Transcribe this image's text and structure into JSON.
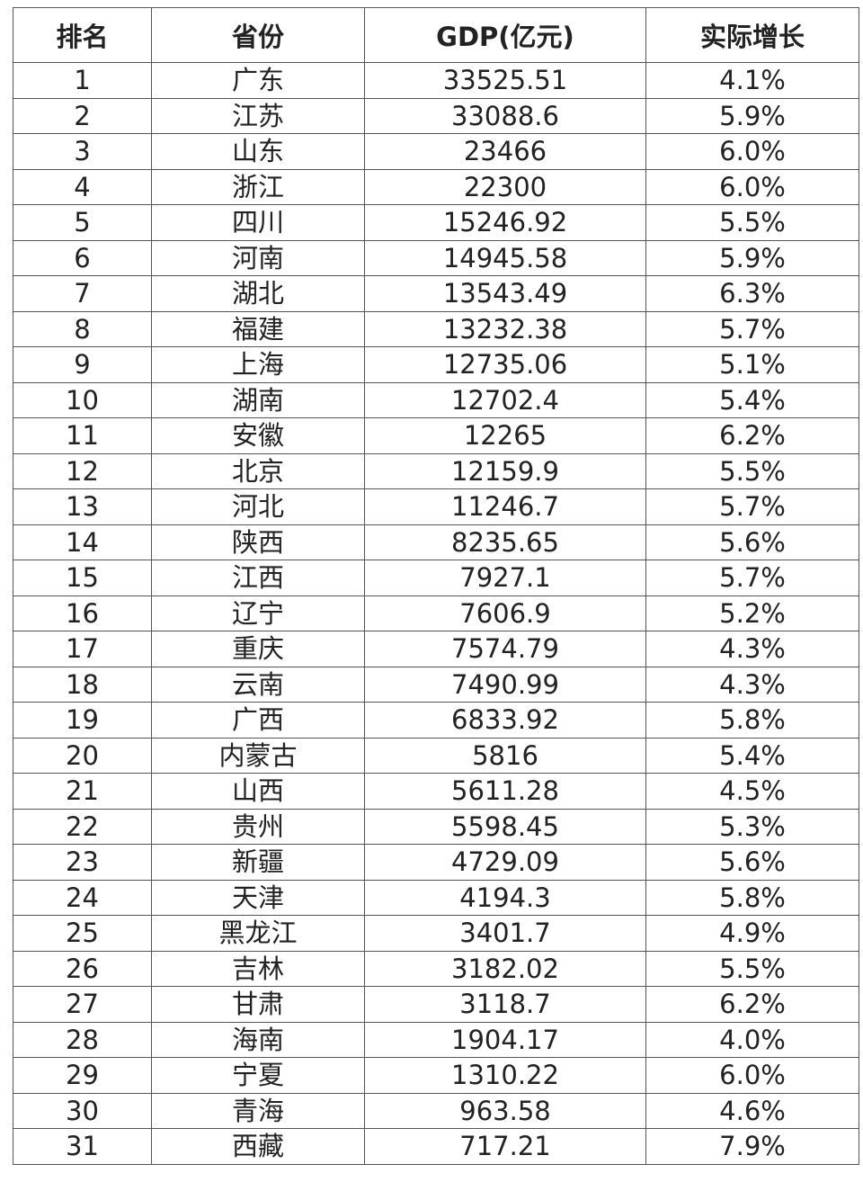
{
  "headers": [
    "排名",
    "省份",
    "GDP(亿元)",
    "实际增长"
  ],
  "rows": [
    [
      "1",
      "广东",
      "33525.51",
      "4.1%"
    ],
    [
      "2",
      "江苏",
      "33088.6",
      "5.9%"
    ],
    [
      "3",
      "山东",
      "23466",
      "6.0%"
    ],
    [
      "4",
      "浙江",
      "22300",
      "6.0%"
    ],
    [
      "5",
      "四川",
      "15246.92",
      "5.5%"
    ],
    [
      "6",
      "河南",
      "14945.58",
      "5.9%"
    ],
    [
      "7",
      "湖北",
      "13543.49",
      "6.3%"
    ],
    [
      "8",
      "福建",
      "13232.38",
      "5.7%"
    ],
    [
      "9",
      "上海",
      "12735.06",
      "5.1%"
    ],
    [
      "10",
      "湖南",
      "12702.4",
      "5.4%"
    ],
    [
      "11",
      "安徽",
      "12265",
      "6.2%"
    ],
    [
      "12",
      "北京",
      "12159.9",
      "5.5%"
    ],
    [
      "13",
      "河北",
      "11246.7",
      "5.7%"
    ],
    [
      "14",
      "陕西",
      "8235.65",
      "5.6%"
    ],
    [
      "15",
      "江西",
      "7927.1",
      "5.7%"
    ],
    [
      "16",
      "辽宁",
      "7606.9",
      "5.2%"
    ],
    [
      "17",
      "重庆",
      "7574.79",
      "4.3%"
    ],
    [
      "18",
      "云南",
      "7490.99",
      "4.3%"
    ],
    [
      "19",
      "广西",
      "6833.92",
      "5.8%"
    ],
    [
      "20",
      "内蒙古",
      "5816",
      "5.4%"
    ],
    [
      "21",
      "山西",
      "5611.28",
      "4.5%"
    ],
    [
      "22",
      "贵州",
      "5598.45",
      "5.3%"
    ],
    [
      "23",
      "新疆",
      "4729.09",
      "5.6%"
    ],
    [
      "24",
      "天津",
      "4194.3",
      "5.8%"
    ],
    [
      "25",
      "黑龙江",
      "3401.7",
      "4.9%"
    ],
    [
      "26",
      "吉林",
      "3182.02",
      "5.5%"
    ],
    [
      "27",
      "甘肃",
      "3118.7",
      "6.2%"
    ],
    [
      "28",
      "海南",
      "1904.17",
      "4.0%"
    ],
    [
      "29",
      "宁夏",
      "1310.22",
      "6.0%"
    ],
    [
      "30",
      "青海",
      "963.58",
      "4.6%"
    ],
    [
      "31",
      "西藏",
      "717.21",
      "7.9%"
    ]
  ]
}
